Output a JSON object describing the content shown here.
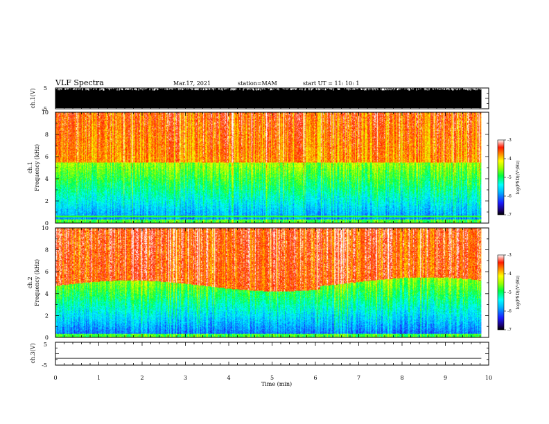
{
  "header": {
    "title": "VLF Spectra",
    "date": "Mar.17, 2021",
    "station": "station=MAM",
    "start": "start UT =   11: 10: 1"
  },
  "chart_data": [
    {
      "type": "line",
      "name": "ch1-waveform",
      "ylabel": "ch.1(V)",
      "ylim": [
        -5,
        5
      ],
      "ytick_labels": [
        "5",
        "-5"
      ]
    },
    {
      "type": "heatmap",
      "name": "ch1-spectrogram",
      "ylabel_line1": "ch.1",
      "ylabel_line2": "Frequency (kHz)",
      "ylim": [
        0,
        10
      ],
      "ytick_labels": [
        "0",
        "2",
        "4",
        "6",
        "8",
        "10"
      ],
      "colorbar": {
        "label": "log(PSD)(V²/Hz)",
        "range": [
          -7,
          -3
        ],
        "tick_labels": [
          "-3",
          "-4",
          "-5",
          "-6",
          "-7"
        ]
      }
    },
    {
      "type": "heatmap",
      "name": "ch2-spectrogram",
      "ylabel_line1": "ch.2",
      "ylabel_line2": "Frequency (kHz)",
      "ylim": [
        0,
        10
      ],
      "ytick_labels": [
        "0",
        "2",
        "4",
        "6",
        "8",
        "10"
      ],
      "colorbar": {
        "label": "log(PSD)(V²/Hz)",
        "range": [
          -7,
          -3
        ],
        "tick_labels": [
          "-3",
          "-4",
          "-5",
          "-6",
          "-7"
        ]
      }
    },
    {
      "type": "line",
      "name": "ch3-waveform",
      "ylabel": "ch.3(V)",
      "ylim": [
        -5,
        5
      ],
      "ytick_labels": [
        "5",
        "-5"
      ],
      "x": [
        0,
        9.83
      ],
      "y": [
        -2,
        -2
      ]
    }
  ],
  "xaxis": {
    "label": "Time (min)",
    "xlim": [
      0,
      10
    ],
    "tick_labels": [
      "0",
      "1",
      "2",
      "3",
      "4",
      "5",
      "6",
      "7",
      "8",
      "9",
      "10"
    ],
    "data_end": 9.83
  }
}
